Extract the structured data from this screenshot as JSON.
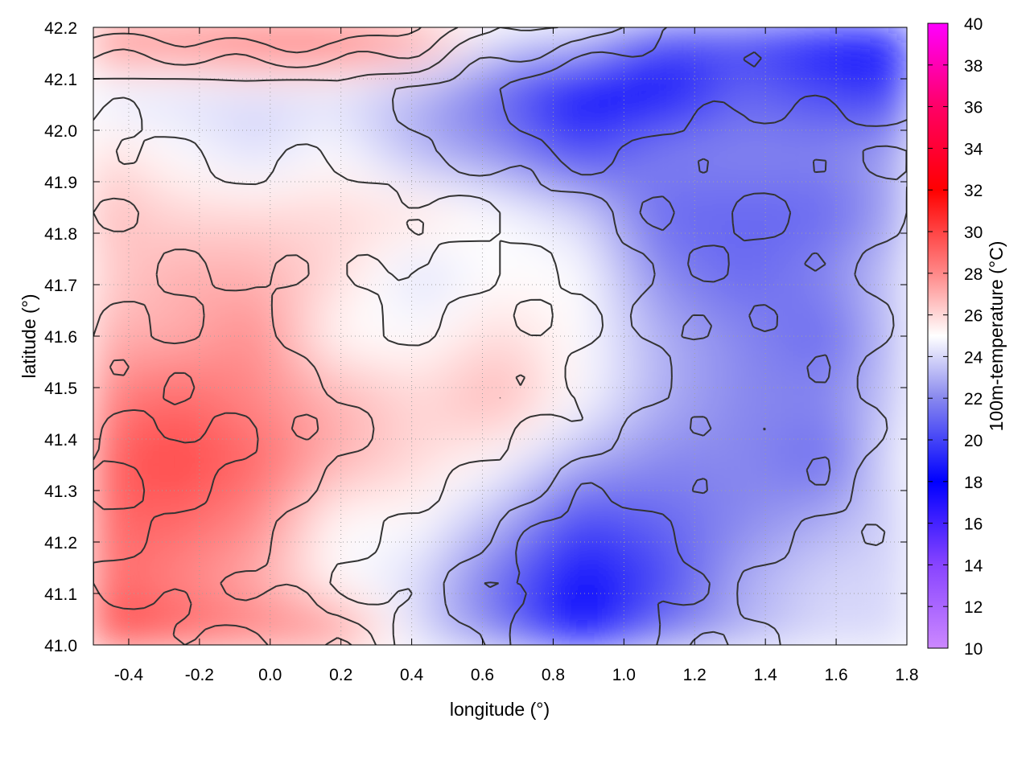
{
  "chart_data": {
    "type": "heatmap",
    "title": "",
    "xlabel": "longitude (°)",
    "ylabel": "latitude (°)",
    "colorbar_label": "100m-temperature (°C)",
    "xlim": [
      -0.5,
      1.8
    ],
    "ylim": [
      41.0,
      42.2
    ],
    "color_range": [
      10,
      40
    ],
    "x_ticks": [
      -0.4,
      -0.2,
      0.0,
      0.2,
      0.4,
      0.6,
      0.8,
      1.0,
      1.2,
      1.4,
      1.6,
      1.8
    ],
    "x_tick_labels": [
      "-0.4",
      "-0.2",
      "0.0",
      "0.2",
      "0.4",
      "0.6",
      "0.8",
      "1.0",
      "1.2",
      "1.4",
      "1.6",
      "1.8"
    ],
    "y_ticks": [
      41.0,
      41.1,
      41.2,
      41.3,
      41.4,
      41.5,
      41.6,
      41.7,
      41.8,
      41.9,
      42.0,
      42.1,
      42.2
    ],
    "y_tick_labels": [
      "41.0",
      "41.1",
      "41.2",
      "41.3",
      "41.4",
      "41.5",
      "41.6",
      "41.7",
      "41.8",
      "41.9",
      "42.0",
      "42.1",
      "42.2"
    ],
    "colorbar_ticks": [
      10,
      12,
      14,
      16,
      18,
      20,
      22,
      24,
      26,
      28,
      30,
      32,
      34,
      36,
      38,
      40
    ],
    "colorbar_tick_labels": [
      "10",
      "12",
      "14",
      "16",
      "18",
      "20",
      "22",
      "24",
      "26",
      "28",
      "30",
      "32",
      "34",
      "36",
      "38",
      "40"
    ],
    "colormap_stops": [
      {
        "value": 10,
        "color": "#cc88ff"
      },
      {
        "value": 14,
        "color": "#8844ff"
      },
      {
        "value": 18,
        "color": "#0000ff"
      },
      {
        "value": 22,
        "color": "#8888ee"
      },
      {
        "value": 25,
        "color": "#ffffff"
      },
      {
        "value": 28,
        "color": "#ff8888"
      },
      {
        "value": 32,
        "color": "#ff0000"
      },
      {
        "value": 36,
        "color": "#ff0066"
      },
      {
        "value": 40,
        "color": "#ff00ff"
      }
    ],
    "grid": true,
    "contours": true,
    "contour_color": "#333333",
    "temperature_grid": {
      "lon": [
        -0.5,
        -0.27,
        -0.04,
        0.19,
        0.42,
        0.65,
        0.88,
        1.11,
        1.34,
        1.57,
        1.8
      ],
      "lat": [
        41.0,
        41.12,
        41.24,
        41.36,
        41.48,
        41.6,
        41.72,
        41.84,
        41.96,
        42.08,
        42.2
      ],
      "values": [
        [
          31,
          30,
          29,
          29,
          24,
          22,
          18,
          22,
          23,
          24,
          24
        ],
        [
          29,
          28,
          27,
          25,
          24,
          21,
          18,
          20,
          23,
          24,
          24
        ],
        [
          29,
          29,
          28,
          25,
          25,
          23,
          20,
          21,
          22,
          23,
          24
        ],
        [
          29,
          30,
          29,
          27,
          26,
          25,
          23,
          22,
          22,
          21,
          25
        ],
        [
          28,
          29,
          28,
          27,
          26,
          27,
          25,
          23,
          22,
          22,
          24
        ],
        [
          27,
          27,
          28,
          25,
          25,
          26,
          25,
          23,
          22,
          21,
          24
        ],
        [
          26,
          27,
          27,
          26,
          24,
          25,
          25,
          22,
          21,
          22,
          24
        ],
        [
          27,
          26,
          26,
          26,
          26,
          25,
          24,
          21,
          21,
          21,
          23
        ],
        [
          26,
          25,
          24,
          25,
          23,
          22,
          20,
          22,
          22,
          22,
          23
        ],
        [
          24,
          24,
          24,
          24,
          23,
          21,
          18,
          18,
          21,
          20,
          19
        ],
        [
          30,
          30,
          31,
          31,
          29,
          25,
          25,
          21,
          20,
          18,
          18
        ]
      ]
    }
  }
}
